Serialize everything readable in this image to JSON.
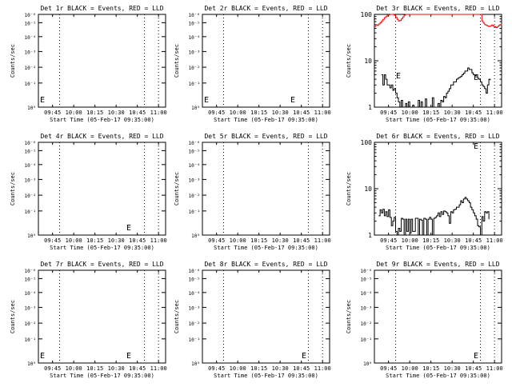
{
  "figure": {
    "xlabel": "Start Time (05-Feb-17 09:35:00)",
    "ylabel": "Counts/sec",
    "x_tick_labels": [
      "09:45",
      "10:00",
      "10:15",
      "10:30",
      "10:45",
      "11:00"
    ],
    "colors": {
      "events": "#000000",
      "lld": "#ff0000",
      "axes": "#000000",
      "background": "#ffffff"
    }
  },
  "chart_data": [
    {
      "type": "line",
      "title": "Det 1r BLACK = Events, RED = LLD",
      "yscale": "log",
      "ylim": [
        1,
        100000000
      ],
      "y_tick_labels": [
        "10⁰",
        "10⁻¹",
        "10⁻²",
        "10⁻³",
        "10⁻⁴",
        "10⁻⁵",
        "10⁻⁶"
      ],
      "series": [],
      "markers": [
        "E"
      ]
    },
    {
      "type": "line",
      "title": "Det 2r BLACK = Events, RED = LLD",
      "yscale": "log",
      "ylim": [
        1,
        100000000
      ],
      "y_tick_labels": [
        "10⁰",
        "10⁻¹",
        "10⁻²",
        "10⁻³",
        "10⁻⁴",
        "10⁻⁵",
        "10⁻⁶"
      ],
      "series": [],
      "markers": [
        "E",
        "E"
      ]
    },
    {
      "type": "line",
      "title": "Det 3r BLACK = Events, RED = LLD",
      "yscale": "log",
      "ylim": [
        1,
        100
      ],
      "y_tick_labels": [
        "1",
        "10",
        "100"
      ],
      "markers": [
        "E",
        "E"
      ],
      "series": [
        {
          "color": "#ff0000",
          "x": [
            0,
            1,
            2,
            3,
            4,
            5,
            6,
            7,
            8,
            9,
            10,
            11,
            12,
            13,
            14,
            15,
            16,
            17,
            18,
            19,
            20,
            21,
            22,
            23,
            24,
            25,
            26,
            27,
            28,
            29,
            30,
            31,
            32,
            33,
            34,
            35,
            36,
            37,
            38,
            39,
            40,
            41,
            42,
            43,
            44,
            45,
            46,
            47,
            48,
            49,
            50,
            51,
            52,
            53,
            54,
            55,
            56,
            57,
            58,
            59,
            60,
            61,
            62,
            63,
            64,
            65,
            66,
            67,
            68,
            69,
            70,
            71,
            72,
            73,
            74,
            75,
            76,
            77,
            78,
            79,
            80,
            81,
            82,
            83,
            84,
            85,
            86,
            87,
            88,
            89,
            90
          ],
          "y": [
            55,
            60,
            58,
            62,
            66,
            72,
            78,
            85,
            90,
            95,
            98,
            100,
            100,
            100,
            96,
            86,
            78,
            72,
            74,
            80,
            88,
            96,
            100,
            100,
            100,
            100,
            100,
            100,
            100,
            100,
            100,
            100,
            100,
            100,
            100,
            100,
            100,
            100,
            100,
            100,
            100,
            100,
            100,
            100,
            100,
            100,
            100,
            100,
            100,
            100,
            100,
            100,
            100,
            100,
            100,
            100,
            100,
            100,
            100,
            100,
            100,
            100,
            100,
            100,
            100,
            100,
            100,
            100,
            100,
            100,
            100,
            100,
            100,
            100,
            100,
            100,
            72,
            65,
            60,
            58,
            56,
            55,
            57,
            59,
            56,
            54,
            52,
            55,
            58,
            60,
            62
          ]
        },
        {
          "color": "#000000",
          "x": [
            5,
            6,
            7,
            8,
            9,
            10,
            11,
            12,
            13,
            14,
            15,
            16,
            17,
            18,
            19,
            20,
            21,
            22,
            23,
            24,
            25,
            26,
            27,
            28,
            29,
            30,
            31,
            32,
            33,
            34,
            35,
            36,
            37,
            38,
            39,
            40,
            41,
            42,
            43,
            44,
            45,
            46,
            47,
            48,
            49,
            50,
            51,
            52,
            53,
            54,
            55,
            56,
            57,
            58,
            59,
            60,
            61,
            62,
            63,
            64,
            65,
            66,
            67,
            68,
            69,
            70,
            71,
            72,
            73,
            74,
            75,
            76,
            77,
            78,
            79,
            80,
            81,
            82
          ],
          "y": [
            5,
            3,
            5,
            4,
            3,
            3,
            2.6,
            3,
            2.3,
            2.5,
            2,
            1.6,
            1.3,
            1,
            1.4,
            1,
            1,
            1.2,
            1,
            1.3,
            1,
            1,
            1.1,
            1,
            1,
            1,
            1.4,
            1,
            1.3,
            1,
            1,
            1.5,
            1,
            1,
            1,
            1,
            1.6,
            1,
            1,
            1,
            1.2,
            1,
            1.4,
            1.3,
            1.7,
            1.6,
            2,
            2.2,
            2.5,
            3,
            3,
            3.5,
            3.5,
            4,
            4.2,
            4.4,
            4.6,
            5,
            5.4,
            6,
            6,
            7,
            6.5,
            6.5,
            5.5,
            5,
            4.8,
            5,
            4.2,
            4,
            3.5,
            3,
            2.8,
            2.5,
            2,
            3,
            4,
            3.8
          ]
        }
      ]
    },
    {
      "type": "line",
      "title": "Det 4r BLACK = Events, RED = LLD",
      "yscale": "log",
      "ylim": [
        1,
        100000000
      ],
      "y_tick_labels": [
        "10⁰",
        "10⁻¹",
        "10⁻²",
        "10⁻³",
        "10⁻⁴",
        "10⁻⁵",
        "10⁻⁶"
      ],
      "series": [],
      "markers": [
        "E"
      ]
    },
    {
      "type": "line",
      "title": "Det 5r BLACK = Events, RED = LLD",
      "yscale": "log",
      "ylim": [
        1,
        100000000
      ],
      "y_tick_labels": [
        "10⁰",
        "10⁻¹",
        "10⁻²",
        "10⁻³",
        "10⁻⁴",
        "10⁻⁵",
        "10⁻⁶"
      ],
      "series": [],
      "markers": []
    },
    {
      "type": "line",
      "title": "Det 6r BLACK = Events, RED = LLD",
      "yscale": "log",
      "ylim": [
        1,
        100
      ],
      "y_tick_labels": [
        "1",
        "10",
        "100"
      ],
      "markers": [
        "E"
      ],
      "series": [
        {
          "color": "#000000",
          "x": [
            3,
            4,
            5,
            6,
            7,
            8,
            9,
            10,
            11,
            12,
            13,
            14,
            15,
            16,
            17,
            18,
            19,
            20,
            21,
            22,
            23,
            24,
            25,
            26,
            27,
            28,
            29,
            30,
            31,
            32,
            33,
            34,
            35,
            36,
            37,
            38,
            39,
            40,
            41,
            42,
            43,
            44,
            45,
            46,
            47,
            48,
            49,
            50,
            51,
            52,
            53,
            54,
            55,
            56,
            57,
            58,
            59,
            60,
            61,
            62,
            63,
            64,
            65,
            66,
            67,
            68,
            69,
            70,
            71,
            72,
            73,
            74,
            75,
            76,
            77,
            78,
            79,
            80,
            81
          ],
          "y": [
            2.6,
            3.5,
            3,
            3.6,
            2.6,
            3.2,
            2.5,
            3.5,
            2.4,
            1.6,
            2,
            2.4,
            1.2,
            1,
            1.4,
            1.2,
            2.3,
            2.2,
            1,
            2.2,
            1.2,
            2.2,
            1.1,
            2.2,
            1.2,
            1.2,
            2.3,
            2.3,
            1,
            2.2,
            2.1,
            1,
            2.3,
            2.2,
            1,
            2.2,
            2.4,
            2.2,
            1,
            2.3,
            2.4,
            2.6,
            3,
            2.5,
            3.2,
            2.8,
            3.3,
            3.2,
            3,
            2.6,
            1.8,
            3.2,
            3,
            3.5,
            3.6,
            4,
            4,
            4.5,
            5.5,
            5,
            6,
            6.5,
            6,
            5.5,
            5,
            4,
            3.5,
            3,
            2.6,
            2.2,
            1.6,
            1.5,
            1,
            2.5,
            2,
            3.2,
            3,
            3.2,
            2.2
          ]
        }
      ]
    },
    {
      "type": "line",
      "title": "Det 7r BLACK = Events, RED = LLD",
      "yscale": "log",
      "ylim": [
        1,
        100000000
      ],
      "y_tick_labels": [
        "10⁰",
        "10⁻¹",
        "10⁻²",
        "10⁻³",
        "10⁻⁴",
        "10⁻⁵",
        "10⁻⁶"
      ],
      "series": [],
      "markers": [
        "E",
        "E"
      ]
    },
    {
      "type": "line",
      "title": "Det 8r BLACK = Events, RED = LLD",
      "yscale": "log",
      "ylim": [
        1,
        100000000
      ],
      "y_tick_labels": [
        "10⁰",
        "10⁻¹",
        "10⁻²",
        "10⁻³",
        "10⁻⁴",
        "10⁻⁵",
        "10⁻⁶"
      ],
      "series": [],
      "markers": [
        "E"
      ]
    },
    {
      "type": "line",
      "title": "Det 9r BLACK = Events, RED = LLD",
      "yscale": "log",
      "ylim": [
        1,
        100000000
      ],
      "y_tick_labels": [
        "10⁰",
        "10⁻¹",
        "10⁻²",
        "10⁻³",
        "10⁻⁴",
        "10⁻⁵",
        "10⁻⁶"
      ],
      "series": [],
      "markers": [
        "E"
      ]
    }
  ]
}
